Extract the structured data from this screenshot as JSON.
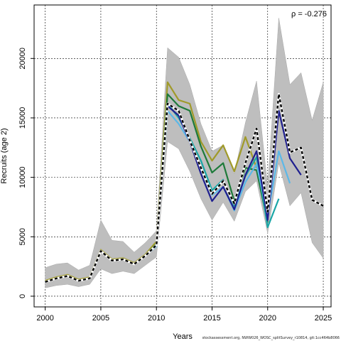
{
  "chart_data": {
    "type": "line",
    "xlabel": "Years",
    "ylabel": "Recruits (age 2)",
    "annotation": "ρ = -0.276",
    "footnote": "stockassessment.org, NWW026_WOSC_splitSurvey_r10814, git:1cc464b8066",
    "xlim": [
      1999,
      2025.7
    ],
    "ylim": [
      -900,
      24500
    ],
    "xticks": [
      2000,
      2005,
      2010,
      2015,
      2020,
      2025
    ],
    "yticks": [
      0,
      5000,
      10000,
      15000,
      20000
    ],
    "grid": true,
    "colors": {
      "band": "#bebebe",
      "band_line": "#a8a8a8",
      "base": "#000000",
      "peel1": "#1f1f8f",
      "peel2": "#5bb8e8",
      "peel3": "#1aa6a6",
      "peel4": "#1e7a3a",
      "peel5": "#a09a2a"
    },
    "band": {
      "x": [
        2000,
        2001,
        2002,
        2003,
        2004,
        2005,
        2006,
        2007,
        2008,
        2009,
        2010,
        2011,
        2012,
        2013,
        2014,
        2015,
        2016,
        2017,
        2018,
        2019,
        2020,
        2021,
        2022,
        2023,
        2024,
        2025
      ],
      "upper": [
        2400,
        2700,
        2800,
        2200,
        2600,
        6400,
        4700,
        4600,
        3700,
        4500,
        5500,
        20900,
        20100,
        17800,
        14500,
        12200,
        12700,
        10300,
        14600,
        18100,
        9200,
        23400,
        17800,
        18800,
        14800,
        18000
      ],
      "lower": [
        700,
        900,
        1000,
        800,
        1000,
        2300,
        1900,
        2100,
        1900,
        2600,
        3300,
        13000,
        12400,
        10500,
        8200,
        6400,
        7900,
        6300,
        8800,
        9700,
        5300,
        11200,
        7600,
        8700,
        4500,
        3200
      ]
    },
    "series": [
      {
        "style": "base",
        "x": [
          2000,
          2001,
          2002,
          2003,
          2004,
          2005,
          2006,
          2007,
          2008,
          2009,
          2010,
          2011,
          2012,
          2013,
          2014,
          2015,
          2016,
          2017,
          2018,
          2019,
          2020,
          2021,
          2022,
          2023,
          2024,
          2025
        ],
        "values": [
          1200,
          1500,
          1700,
          1300,
          1500,
          3800,
          3000,
          3100,
          2700,
          3400,
          4300,
          16200,
          15600,
          13100,
          10800,
          8600,
          9700,
          7800,
          11200,
          14100,
          7100,
          17000,
          12100,
          12500,
          8100,
          7600
        ]
      },
      {
        "style": "peel1",
        "x": [
          2000,
          2001,
          2002,
          2003,
          2004,
          2005,
          2006,
          2007,
          2008,
          2009,
          2010,
          2011,
          2012,
          2013,
          2014,
          2015,
          2016,
          2017,
          2018,
          2019,
          2020,
          2021,
          2022,
          2023
        ],
        "values": [
          1200,
          1500,
          1700,
          1300,
          1500,
          3800,
          3000,
          3100,
          2700,
          3400,
          4300,
          16000,
          15200,
          13000,
          10300,
          8000,
          9200,
          7300,
          10200,
          12200,
          6400,
          15600,
          11600,
          10200
        ]
      },
      {
        "style": "peel2",
        "x": [
          2000,
          2001,
          2002,
          2003,
          2004,
          2005,
          2006,
          2007,
          2008,
          2009,
          2010,
          2011,
          2012,
          2013,
          2014,
          2015,
          2016,
          2017,
          2018,
          2019,
          2020,
          2021,
          2022
        ],
        "values": [
          1200,
          1500,
          1700,
          1300,
          1500,
          3800,
          3000,
          3100,
          2700,
          3400,
          4200,
          15600,
          14500,
          13000,
          10700,
          8500,
          9200,
          7200,
          9600,
          11100,
          6800,
          12200,
          9500
        ]
      },
      {
        "style": "peel3",
        "x": [
          2000,
          2001,
          2002,
          2003,
          2004,
          2005,
          2006,
          2007,
          2008,
          2009,
          2010,
          2011,
          2012,
          2013,
          2014,
          2015,
          2016,
          2017,
          2018,
          2019,
          2020,
          2021
        ],
        "values": [
          1200,
          1500,
          1700,
          1300,
          1500,
          3800,
          3000,
          3100,
          2700,
          3400,
          4300,
          16200,
          15000,
          13300,
          11400,
          8900,
          9800,
          7600,
          10100,
          11700,
          5800,
          8200
        ]
      },
      {
        "style": "peel4",
        "x": [
          2000,
          2001,
          2002,
          2003,
          2004,
          2005,
          2006,
          2007,
          2008,
          2009,
          2010,
          2011,
          2012,
          2013,
          2014,
          2015,
          2016,
          2017,
          2018,
          2019,
          2020
        ],
        "values": [
          1200,
          1500,
          1700,
          1300,
          1500,
          3800,
          3000,
          3100,
          2700,
          3400,
          4400,
          17000,
          16000,
          15600,
          12600,
          10400,
          11200,
          8000,
          10800,
          10600,
          6200
        ]
      },
      {
        "style": "peel5",
        "x": [
          2000,
          2001,
          2002,
          2003,
          2004,
          2005,
          2006,
          2007,
          2008,
          2009,
          2010,
          2011,
          2012,
          2013,
          2014,
          2015,
          2016,
          2017,
          2018,
          2019
        ],
        "values": [
          1300,
          1600,
          1800,
          1400,
          1600,
          3900,
          3100,
          3200,
          2800,
          3500,
          4600,
          18000,
          16500,
          16200,
          13000,
          11400,
          12700,
          10500,
          13400,
          10800
        ]
      }
    ]
  }
}
